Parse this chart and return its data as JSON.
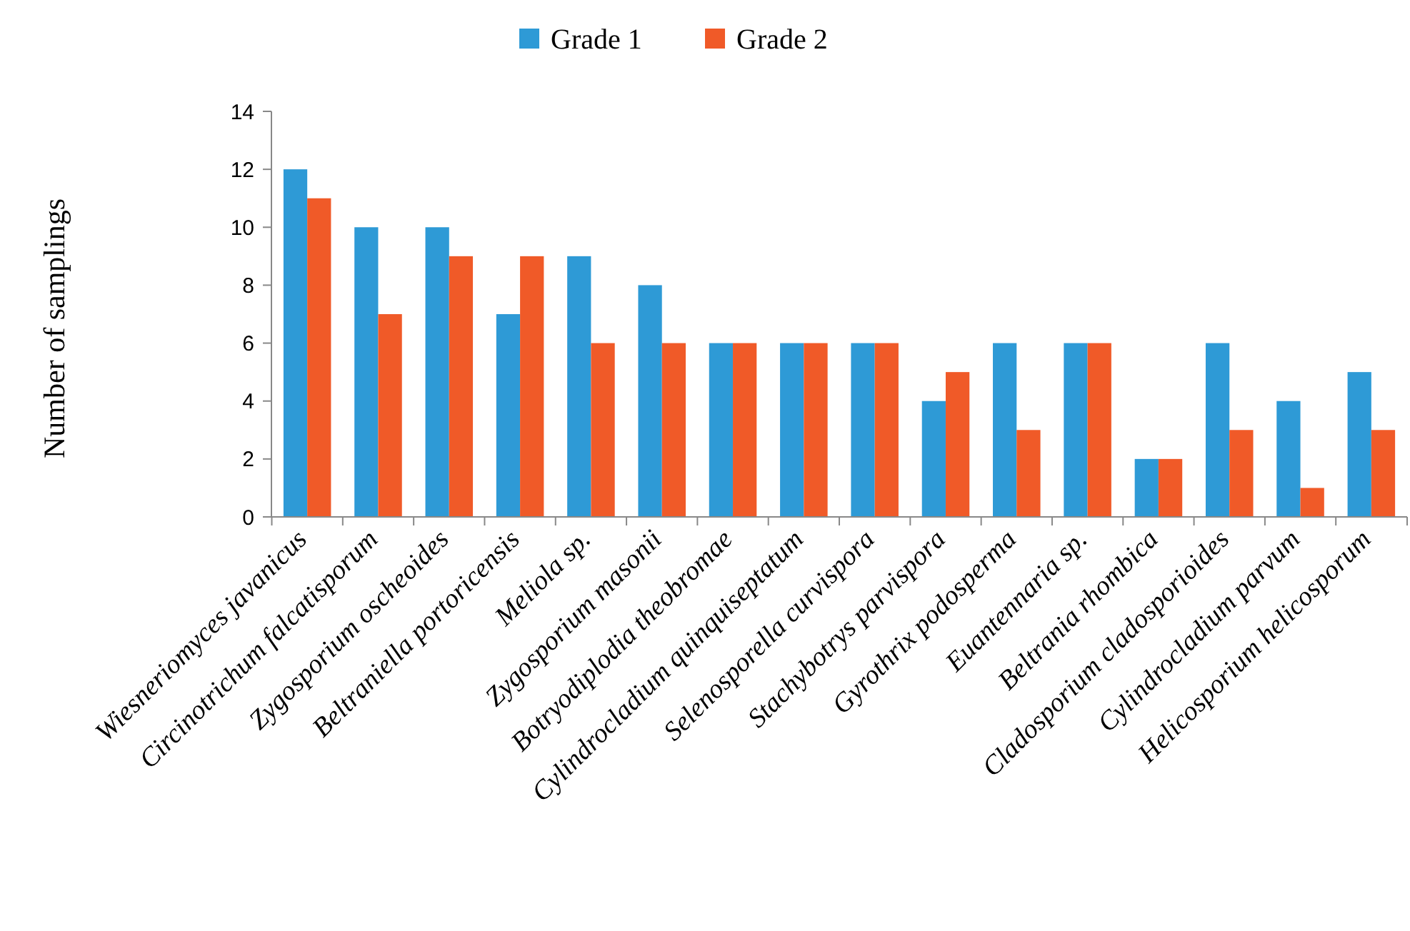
{
  "chart_data": {
    "type": "bar",
    "ylabel": "Number of samplings",
    "categories": [
      "Wiesneriomyces javanicus",
      "Circinotrichum falcatisporum",
      "Zygosporium oscheoides",
      "Beltraniella portoricensis",
      "Meliola sp.",
      "Zygosporium masonii",
      "Botryodiplodia theobromae",
      "Cylindrocladium quinquiseptatum",
      "Selenosporella curvispora",
      "Stachybotrys parvispora",
      "Gyrothrix podosperma",
      "Euantennaria sp.",
      "Beltrania rhombica",
      "Cladosporium cladosporioides",
      "Cylindrocladium parvum",
      "Helicosporium helicosporum"
    ],
    "series": [
      {
        "name": "Grade 1",
        "color": "#2e9ad6",
        "values": [
          12,
          10,
          10,
          7,
          9,
          8,
          6,
          6,
          6,
          4,
          6,
          6,
          2,
          6,
          4,
          5
        ]
      },
      {
        "name": "Grade 2",
        "color": "#f05a28",
        "values": [
          11,
          7,
          9,
          9,
          6,
          6,
          6,
          6,
          6,
          5,
          3,
          6,
          2,
          3,
          1,
          3
        ]
      }
    ],
    "ylim": [
      0,
      14
    ],
    "yticks": [
      0,
      2,
      4,
      6,
      8,
      10,
      12,
      14
    ],
    "grid": false,
    "legend": "top"
  }
}
